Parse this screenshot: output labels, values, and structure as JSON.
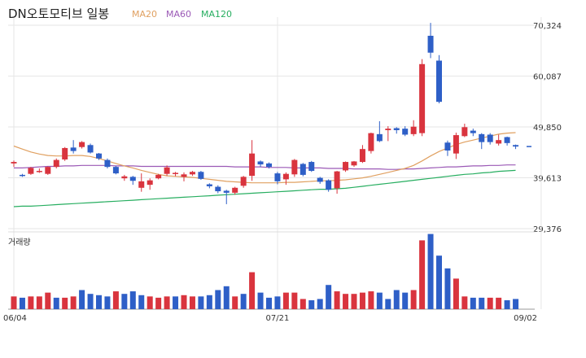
{
  "title": "DN오토모티브 일봉",
  "volume_label": "거래량",
  "legend": [
    {
      "name": "MA20",
      "color": "#e0a060"
    },
    {
      "name": "MA60",
      "color": "#9b59b6"
    },
    {
      "name": "MA120",
      "color": "#27ae60"
    }
  ],
  "colors": {
    "up": "#d9343e",
    "down": "#2e5fc7",
    "grid": "#e6e6e6"
  },
  "chart_data": {
    "type": "candlestick",
    "y_ticks": [
      "70,324",
      "60,087",
      "49,850",
      "39,613",
      "29,376"
    ],
    "y_tick_values": [
      70324,
      60087,
      49850,
      39613,
      29376
    ],
    "x_ticks": [
      {
        "label": "06/04",
        "index": 0
      },
      {
        "label": "07/21",
        "index": 31
      },
      {
        "label": "09/02",
        "index": 62
      }
    ],
    "candles": [
      [
        42500,
        42800,
        41800,
        43100
      ],
      [
        40200,
        40100,
        39800,
        40400
      ],
      [
        40400,
        41600,
        40200,
        41800
      ],
      [
        41000,
        41000,
        40600,
        41500
      ],
      [
        40400,
        41800,
        40200,
        41900
      ],
      [
        41800,
        43200,
        41500,
        43500
      ],
      [
        43300,
        45600,
        43000,
        45800
      ],
      [
        45700,
        45000,
        44500,
        47200
      ],
      [
        45800,
        46800,
        45500,
        47000
      ],
      [
        46200,
        44700,
        44500,
        46500
      ],
      [
        44500,
        43500,
        43200,
        44600
      ],
      [
        43200,
        41800,
        41500,
        43500
      ],
      [
        41800,
        40500,
        40300,
        42000
      ],
      [
        39500,
        39900,
        39000,
        40200
      ],
      [
        39800,
        39000,
        38200,
        40000
      ],
      [
        37600,
        38900,
        36800,
        40500
      ],
      [
        38200,
        39100,
        37200,
        39500
      ],
      [
        39500,
        40200,
        39300,
        40400
      ],
      [
        40400,
        41700,
        40000,
        42100
      ],
      [
        40400,
        40600,
        39900,
        40800
      ],
      [
        39800,
        40300,
        38900,
        40700
      ],
      [
        40300,
        40800,
        40000,
        41000
      ],
      [
        40800,
        39400,
        39200,
        41000
      ],
      [
        38300,
        37900,
        37500,
        38500
      ],
      [
        37800,
        36900,
        36500,
        38100
      ],
      [
        37000,
        36600,
        34300,
        37200
      ],
      [
        36600,
        37600,
        36200,
        37800
      ],
      [
        38000,
        39800,
        37600,
        40000
      ],
      [
        40000,
        44500,
        39000,
        47200
      ],
      [
        42900,
        42300,
        41800,
        43100
      ],
      [
        42500,
        41800,
        41500,
        42700
      ],
      [
        40500,
        38900,
        38300,
        40800
      ],
      [
        39300,
        40400,
        38200,
        40700
      ],
      [
        40300,
        43200,
        39800,
        43400
      ],
      [
        42400,
        40200,
        39900,
        42600
      ],
      [
        42800,
        41000,
        40800,
        43000
      ],
      [
        39600,
        38800,
        38400,
        39800
      ],
      [
        39100,
        37200,
        36800,
        39300
      ],
      [
        37500,
        40900,
        36400,
        41000
      ],
      [
        41100,
        42800,
        40800,
        42900
      ],
      [
        42100,
        42900,
        41800,
        43000
      ],
      [
        42800,
        45400,
        42600,
        46200
      ],
      [
        45000,
        48600,
        44500,
        48700
      ],
      [
        48400,
        47000,
        46800,
        51000
      ],
      [
        49200,
        49500,
        47000,
        50000
      ],
      [
        49600,
        49200,
        48500,
        49800
      ],
      [
        49500,
        48300,
        48000,
        50000
      ],
      [
        48400,
        49900,
        48000,
        51200
      ],
      [
        48600,
        62500,
        48000,
        63500
      ],
      [
        68200,
        64800,
        63700,
        70800
      ],
      [
        63200,
        54900,
        54600,
        64300
      ],
      [
        46700,
        45100,
        44000,
        47100
      ],
      [
        44500,
        48200,
        43400,
        48700
      ],
      [
        48000,
        49800,
        47800,
        50500
      ],
      [
        49100,
        48600,
        48000,
        49500
      ],
      [
        48400,
        46800,
        45400,
        48600
      ],
      [
        48300,
        46800,
        46300,
        48600
      ],
      [
        46500,
        47200,
        46100,
        48300
      ],
      [
        47800,
        46600,
        46100,
        47900
      ],
      [
        46200,
        45900,
        45400,
        46300
      ]
    ],
    "volume": [
      [
        1.0,
        0
      ],
      [
        0.9,
        1
      ],
      [
        1.0,
        0
      ],
      [
        1.0,
        0
      ],
      [
        1.3,
        0
      ],
      [
        0.9,
        1
      ],
      [
        0.9,
        0
      ],
      [
        1.0,
        0
      ],
      [
        1.5,
        1
      ],
      [
        1.2,
        1
      ],
      [
        1.1,
        1
      ],
      [
        1.0,
        1
      ],
      [
        1.4,
        0
      ],
      [
        1.2,
        1
      ],
      [
        1.4,
        1
      ],
      [
        1.1,
        1
      ],
      [
        1.0,
        0
      ],
      [
        0.9,
        0
      ],
      [
        1.0,
        0
      ],
      [
        1.0,
        1
      ],
      [
        1.1,
        0
      ],
      [
        1.0,
        0
      ],
      [
        1.0,
        1
      ],
      [
        1.1,
        1
      ],
      [
        1.5,
        1
      ],
      [
        1.8,
        1
      ],
      [
        1.0,
        0
      ],
      [
        1.2,
        1
      ],
      [
        2.9,
        0
      ],
      [
        1.3,
        1
      ],
      [
        0.9,
        1
      ],
      [
        1.0,
        1
      ],
      [
        1.3,
        0
      ],
      [
        1.3,
        0
      ],
      [
        0.8,
        0
      ],
      [
        0.7,
        1
      ],
      [
        0.8,
        1
      ],
      [
        1.9,
        1
      ],
      [
        1.4,
        0
      ],
      [
        1.2,
        0
      ],
      [
        1.2,
        0
      ],
      [
        1.3,
        0
      ],
      [
        1.4,
        0
      ],
      [
        1.3,
        1
      ],
      [
        0.8,
        1
      ],
      [
        1.5,
        1
      ],
      [
        1.3,
        1
      ],
      [
        1.5,
        0
      ],
      [
        5.4,
        0
      ],
      [
        5.9,
        1
      ],
      [
        4.2,
        1
      ],
      [
        3.2,
        1
      ],
      [
        2.4,
        0
      ],
      [
        1.0,
        0
      ],
      [
        0.9,
        1
      ],
      [
        0.9,
        1
      ],
      [
        0.9,
        0
      ],
      [
        0.9,
        0
      ],
      [
        0.7,
        1
      ],
      [
        0.8,
        1
      ]
    ],
    "ma20": [
      46000,
      45400,
      44800,
      44400,
      44100,
      44000,
      44000,
      44100,
      44100,
      43900,
      43500,
      43000,
      42500,
      42000,
      41600,
      41100,
      40700,
      40300,
      40000,
      39900,
      39800,
      39700,
      39500,
      39300,
      39100,
      38900,
      38800,
      38700,
      38600,
      38600,
      38600,
      38600,
      38700,
      38700,
      38800,
      38900,
      39000,
      39000,
      39100,
      39200,
      39400,
      39600,
      39900,
      40300,
      40700,
      41100,
      41500,
      42100,
      43000,
      44000,
      44900,
      45600,
      46300,
      46800,
      47200,
      47600,
      48000,
      48400,
      48600,
      48700
    ],
    "ma60": [
      41600,
      41600,
      41700,
      41800,
      41900,
      41900,
      42000,
      42000,
      42100,
      42100,
      42100,
      42100,
      42000,
      42000,
      42000,
      41900,
      41900,
      41900,
      41900,
      41900,
      41900,
      41900,
      41900,
      41900,
      41900,
      41900,
      41800,
      41800,
      41800,
      41800,
      41700,
      41700,
      41700,
      41600,
      41600,
      41600,
      41600,
      41500,
      41500,
      41500,
      41400,
      41400,
      41400,
      41400,
      41300,
      41300,
      41400,
      41400,
      41500,
      41600,
      41700,
      41800,
      41800,
      41900,
      42000,
      42000,
      42100,
      42100,
      42200,
      42200
    ],
    "ma120": [
      33800,
      33900,
      33900,
      34000,
      34100,
      34200,
      34300,
      34400,
      34500,
      34600,
      34700,
      34800,
      34900,
      35000,
      35100,
      35200,
      35300,
      35400,
      35500,
      35600,
      35700,
      35800,
      35900,
      36000,
      36100,
      36200,
      36300,
      36400,
      36500,
      36600,
      36700,
      36800,
      36900,
      37000,
      37100,
      37200,
      37300,
      37300,
      37400,
      37500,
      37700,
      37900,
      38100,
      38300,
      38500,
      38700,
      38900,
      39100,
      39300,
      39500,
      39700,
      39900,
      40100,
      40300,
      40400,
      40600,
      40700,
      40900,
      41000,
      41100
    ]
  }
}
